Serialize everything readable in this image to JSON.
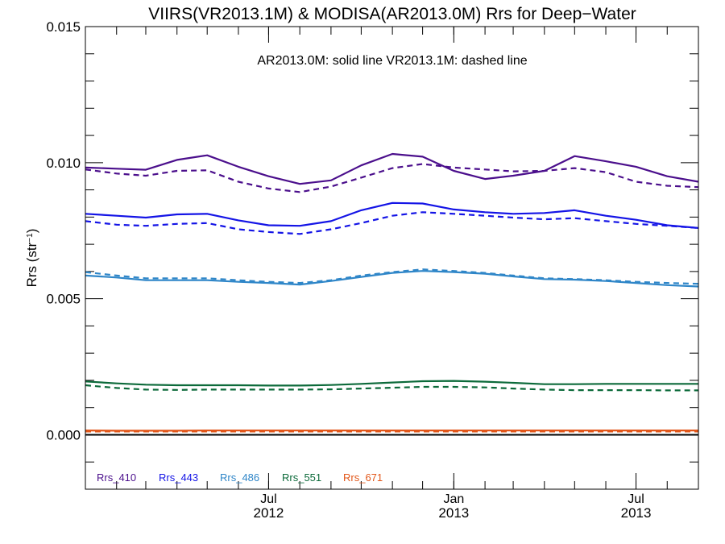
{
  "chart_data": {
    "type": "line",
    "title": "VIIRS(VR2013.1M) & MODISA(AR2013.0M)  Rrs for Deep−Water",
    "annotation": "AR2013.0M: solid line   VR2013.1M: dashed line",
    "ylabel": "Rrs (str⁻¹)",
    "xlabel": "",
    "ylim": [
      -0.002,
      0.015
    ],
    "xlim": [
      "2012-01-01",
      "2013-09-01"
    ],
    "y_ticks": [
      "0.000",
      "0.005",
      "0.010",
      "0.015"
    ],
    "x_ticks": [
      {
        "date": "2012-07-01",
        "month": "Jul",
        "year": "2012"
      },
      {
        "date": "2013-01-01",
        "month": "Jan",
        "year": "2013"
      },
      {
        "date": "2013-07-01",
        "month": "Jul",
        "year": "2013"
      }
    ],
    "x": [
      "2012-01-01",
      "2012-02-01",
      "2012-03-01",
      "2012-04-01",
      "2012-05-01",
      "2012-06-01",
      "2012-07-01",
      "2012-08-01",
      "2012-09-01",
      "2012-10-01",
      "2012-11-01",
      "2012-12-01",
      "2013-01-01",
      "2013-02-01",
      "2013-03-01",
      "2013-04-01",
      "2013-05-01",
      "2013-06-01",
      "2013-07-01",
      "2013-08-01",
      "2013-09-01"
    ],
    "series": [
      {
        "name": "Rrs_410",
        "color": "#4b0f8c",
        "style": "solid",
        "values": [
          0.00982,
          0.00978,
          0.00974,
          0.0101,
          0.01027,
          0.00985,
          0.0095,
          0.00922,
          0.00935,
          0.0099,
          0.01032,
          0.01022,
          0.0097,
          0.0094,
          0.00952,
          0.0097,
          0.01024,
          0.01005,
          0.00985,
          0.0095,
          0.0093
        ]
      },
      {
        "name": "Rrs_410",
        "color": "#4b0f8c",
        "style": "dashed",
        "values": [
          0.00975,
          0.0096,
          0.00952,
          0.0097,
          0.00972,
          0.0093,
          0.00905,
          0.00892,
          0.00912,
          0.00945,
          0.0098,
          0.00995,
          0.00982,
          0.00975,
          0.00968,
          0.0097,
          0.0098,
          0.00965,
          0.0093,
          0.00915,
          0.0091
        ]
      },
      {
        "name": "Rrs_443",
        "color": "#1414e6",
        "style": "solid",
        "values": [
          0.00812,
          0.00805,
          0.00798,
          0.0081,
          0.00812,
          0.00788,
          0.0077,
          0.00768,
          0.00785,
          0.00825,
          0.00852,
          0.0085,
          0.00828,
          0.00818,
          0.00812,
          0.00815,
          0.00825,
          0.00805,
          0.0079,
          0.0077,
          0.0076
        ]
      },
      {
        "name": "Rrs_443",
        "color": "#1414e6",
        "style": "dashed",
        "values": [
          0.00785,
          0.00772,
          0.00768,
          0.00775,
          0.00778,
          0.00755,
          0.00745,
          0.00738,
          0.00755,
          0.00778,
          0.00805,
          0.00818,
          0.00812,
          0.00805,
          0.00798,
          0.00792,
          0.00796,
          0.00785,
          0.00775,
          0.00768,
          0.0076
        ]
      },
      {
        "name": "Rrs_486",
        "color": "#2f86c8",
        "style": "solid",
        "values": [
          0.00585,
          0.00578,
          0.00568,
          0.00568,
          0.00568,
          0.00562,
          0.00558,
          0.00552,
          0.00565,
          0.0058,
          0.00595,
          0.00602,
          0.00598,
          0.00592,
          0.00582,
          0.00572,
          0.0057,
          0.00565,
          0.00558,
          0.0055,
          0.00545
        ]
      },
      {
        "name": "Rrs_486",
        "color": "#2f86c8",
        "style": "dashed",
        "values": [
          0.00598,
          0.00585,
          0.00575,
          0.00575,
          0.00575,
          0.00568,
          0.00562,
          0.00558,
          0.00568,
          0.00585,
          0.00598,
          0.00608,
          0.00602,
          0.00595,
          0.00585,
          0.00575,
          0.00572,
          0.00568,
          0.00562,
          0.00558,
          0.00555
        ]
      },
      {
        "name": "Rrs_551",
        "color": "#0c6a3a",
        "style": "solid",
        "values": [
          0.00196,
          0.00189,
          0.00184,
          0.00182,
          0.00182,
          0.00182,
          0.00181,
          0.00181,
          0.00183,
          0.00187,
          0.00192,
          0.00197,
          0.00198,
          0.00195,
          0.00191,
          0.00186,
          0.00186,
          0.00187,
          0.00187,
          0.00187,
          0.00187
        ]
      },
      {
        "name": "Rrs_551",
        "color": "#0c6a3a",
        "style": "dashed",
        "values": [
          0.00182,
          0.00172,
          0.00166,
          0.00165,
          0.00166,
          0.00166,
          0.00166,
          0.00166,
          0.00167,
          0.0017,
          0.00173,
          0.00176,
          0.00176,
          0.00174,
          0.0017,
          0.00166,
          0.00164,
          0.00164,
          0.00164,
          0.00163,
          0.00163
        ]
      },
      {
        "name": "Rrs_671",
        "color": "#e2571a",
        "style": "solid",
        "values": [
          0.00016,
          0.00015,
          0.00015,
          0.00015,
          0.00016,
          0.00016,
          0.00016,
          0.00016,
          0.00016,
          0.00016,
          0.00016,
          0.00016,
          0.00016,
          0.00016,
          0.00016,
          0.00016,
          0.00016,
          0.00016,
          0.00016,
          0.00016,
          0.00016
        ]
      },
      {
        "name": "Rrs_671",
        "color": "#e2571a",
        "style": "dashed",
        "values": [
          0.00012,
          0.00012,
          0.00012,
          0.00012,
          0.00012,
          0.00012,
          0.00012,
          0.00012,
          0.00012,
          0.00012,
          0.00012,
          0.00012,
          0.00012,
          0.00012,
          0.00012,
          0.00012,
          0.00012,
          0.00012,
          0.00012,
          0.00012,
          0.00012
        ]
      }
    ],
    "legend": [
      {
        "label": "Rrs_410",
        "color": "#4b0f8c"
      },
      {
        "label": "Rrs_443",
        "color": "#1414e6"
      },
      {
        "label": "Rrs_486",
        "color": "#2f86c8"
      },
      {
        "label": "Rrs_551",
        "color": "#0c6a3a"
      },
      {
        "label": "Rrs_671",
        "color": "#e2571a"
      }
    ],
    "legend_placement": "bottom-left",
    "zero_line": true,
    "grid": false
  }
}
